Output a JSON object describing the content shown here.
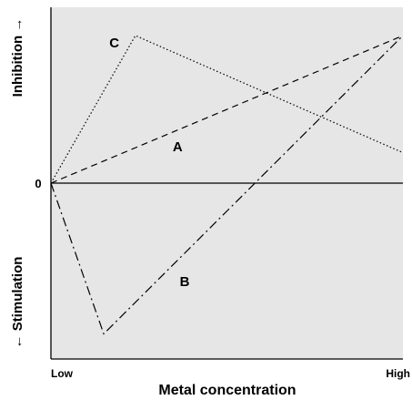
{
  "chart_data": {
    "type": "line",
    "xlabel": "Metal concentration",
    "x_tick_labels": {
      "low": "Low",
      "high": "High"
    },
    "y_label_top": "Inhibition →",
    "y_label_bottom": "← Stimulation",
    "y_zero_label": "0",
    "xlim": [
      0,
      1
    ],
    "ylim": [
      -1,
      1
    ],
    "grid": false,
    "background_color": "#e6e6e6",
    "series": [
      {
        "name": "A",
        "dash": "dashed",
        "points": [
          [
            0,
            0
          ],
          [
            1,
            0.92
          ]
        ],
        "label_at": [
          0.36,
          0.22
        ]
      },
      {
        "name": "B",
        "dash": "dashdot",
        "points": [
          [
            0,
            0
          ],
          [
            0.15,
            -0.94
          ],
          [
            1,
            0.92
          ]
        ],
        "label_at": [
          0.38,
          -0.62
        ]
      },
      {
        "name": "C",
        "dash": "dotted",
        "points": [
          [
            0,
            0
          ],
          [
            0.24,
            0.92
          ],
          [
            1,
            0.19
          ]
        ],
        "label_at": [
          0.18,
          0.87
        ]
      }
    ]
  }
}
